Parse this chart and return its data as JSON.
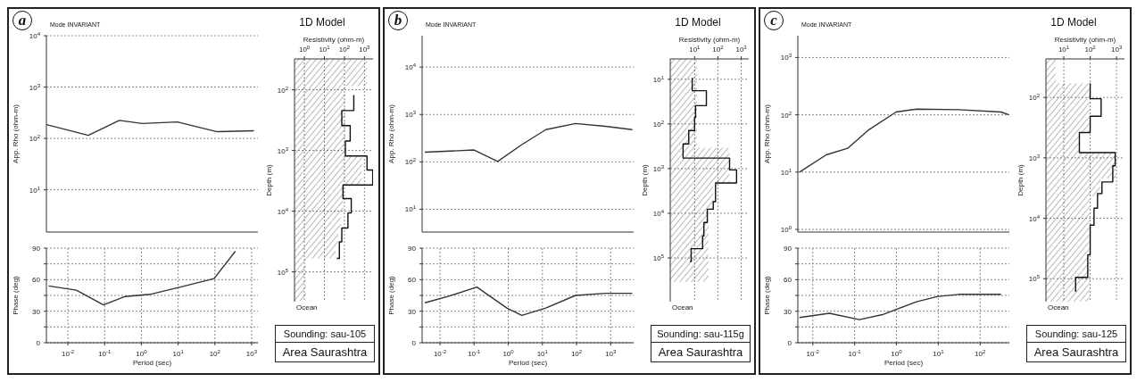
{
  "chart_data": [
    {
      "type": "line",
      "title": "Mode INVARIANT",
      "annotations": [
        "a"
      ],
      "ylabel": "App. Rho (ohm-m)",
      "color": "#333333",
      "log": "xy",
      "grid": true,
      "tick_labels": "y",
      "x": [
        0.0026,
        0.036,
        0.25,
        1.05,
        9.5,
        115,
        1150
      ],
      "values": [
        186,
        115,
        224,
        195,
        209,
        135,
        141
      ],
      "xlim": [
        0.0026,
        1480
      ],
      "xticks": [
        {
          "value": 0.01,
          "label": null
        },
        {
          "value": 0.1,
          "label": null
        },
        {
          "value": 1,
          "label": null
        },
        {
          "value": 10,
          "label": null
        },
        {
          "value": 100,
          "label": null
        },
        {
          "value": 1000,
          "label": null
        }
      ],
      "ylim": [
        1.5,
        10000
      ],
      "yticks": [
        {
          "value": 10,
          "label": "10$^{1}$"
        },
        {
          "value": 100,
          "label": "10$^{2}$"
        },
        {
          "value": 1000,
          "label": "10$^{3}$"
        },
        {
          "value": 10000,
          "label": "10$^{4}$"
        }
      ]
    },
    {
      "type": "line",
      "xlabel": "Period (sec)",
      "ylabel": "Phase (deg)",
      "color": "#333333",
      "log": "x",
      "grid": true,
      "x": [
        0.003,
        0.017,
        0.093,
        0.36,
        1.7,
        11.5,
        95,
        360
      ],
      "values": [
        54,
        50,
        36,
        44,
        46,
        53,
        61,
        87
      ],
      "xlim": [
        0.0026,
        1480
      ],
      "xticks": [
        {
          "value": 0.01,
          "label": "10$^{-2}$"
        },
        {
          "value": 0.1,
          "label": "10$^{-1}$"
        },
        {
          "value": 1,
          "label": "10$^{0}$"
        },
        {
          "value": 10,
          "label": "10$^{1}$"
        },
        {
          "value": 100,
          "label": "10$^{2}$"
        },
        {
          "value": 1000,
          "label": "10$^{3}$"
        }
      ],
      "ylim": [
        0,
        90
      ],
      "yticks": [
        0,
        {
          "value": 15,
          "label": null
        },
        30,
        {
          "value": 45,
          "label": null
        },
        60,
        {
          "value": 75,
          "label": null
        },
        90
      ]
    },
    {
      "type": "step",
      "orientation": "horizontal",
      "title": "1D Model",
      "xlabel": "Resistivity (ohm-m)",
      "ylabel": "Depth (m)",
      "annotations": [
        "Ocean"
      ],
      "log": "xy",
      "grid": true,
      "series": [
        {
          "type": "area",
          "color": "#333333",
          "x": [
            31,
            87,
            1230,
            3900,
            10700,
            21000,
            36000,
            60000,
            300000
          ],
          "values": [
            1350,
            112,
            740,
            85,
            65,
            49,
            37,
            1.2,
            1.2
          ]
        },
        {
          "type": "step",
          "color": "#111111",
          "x": [
            122,
            220,
            390,
            700,
            1230,
            2100,
            3700,
            6200,
            10700,
            19000,
            32000,
            60000
          ],
          "values": [
            295,
            74,
            195,
            112,
            1350,
            2600,
            85,
            220,
            150,
            74,
            56,
            42
          ]
        }
      ],
      "xlim": [
        0.32,
        2700
      ],
      "xticks": [
        {
          "value": 1,
          "label": "10$^{0}$"
        },
        {
          "value": 10,
          "label": "10$^{1}$"
        },
        {
          "value": 100,
          "label": "10$^{2}$"
        },
        {
          "value": 1000,
          "label": "10$^{3}$"
        }
      ],
      "ylim": [
        310000,
        31
      ],
      "yticks": [
        {
          "value": 100,
          "label": "10$^{2}$"
        },
        {
          "value": 1000,
          "label": "10$^{3}$"
        },
        {
          "value": 10000,
          "label": "10$^{4}$"
        },
        {
          "value": 100000,
          "label": "10$^{5}$"
        }
      ]
    },
    {
      "type": "other",
      "annotations": [
        "Sounding: sau-105",
        "Area Saurashtra"
      ]
    },
    {
      "type": "line",
      "title": "Mode INVARIANT",
      "annotations": [
        "b"
      ],
      "ylabel": "App. Rho (ohm-m)",
      "color": "#333333",
      "log": "xy",
      "grid": true,
      "tick_labels": "y",
      "x": [
        0.0036,
        0.1,
        0.49,
        2.45,
        12.6,
        93,
        690,
        4300
      ],
      "values": [
        160,
        178,
        102,
        229,
        479,
        645,
        562,
        479
      ],
      "xlim": [
        0.003,
        4700
      ],
      "xticks": [
        {
          "value": 0.01,
          "label": null
        },
        {
          "value": 0.1,
          "label": null
        },
        {
          "value": 1,
          "label": null
        },
        {
          "value": 10,
          "label": null
        },
        {
          "value": 100,
          "label": null
        },
        {
          "value": 1000,
          "label": null
        }
      ],
      "ylim": [
        3.3,
        46000
      ],
      "yticks": [
        {
          "value": 10,
          "label": "10$^{1}$"
        },
        {
          "value": 100,
          "label": "10$^{2}$"
        },
        {
          "value": 1000,
          "label": "10$^{3}$"
        },
        {
          "value": 10000,
          "label": "10$^{4}$"
        }
      ]
    },
    {
      "type": "line",
      "xlabel": "Period (sec)",
      "ylabel": "Phase (deg)",
      "color": "#333333",
      "log": "x",
      "grid": true,
      "x": [
        0.0036,
        0.017,
        0.12,
        0.91,
        2.5,
        12.6,
        93,
        690,
        4300
      ],
      "values": [
        38,
        44,
        53,
        33,
        26,
        33,
        45,
        47,
        47
      ],
      "xlim": [
        0.003,
        4700
      ],
      "xticks": [
        {
          "value": 0.01,
          "label": "10$^{-2}$"
        },
        {
          "value": 0.1,
          "label": "10$^{-1}$"
        },
        {
          "value": 1,
          "label": "10$^{0}$"
        },
        {
          "value": 10,
          "label": "10$^{1}$"
        },
        {
          "value": 100,
          "label": "10$^{2}$"
        },
        {
          "value": 1000,
          "label": "10$^{3}$"
        }
      ],
      "ylim": [
        0,
        90
      ],
      "yticks": [
        0,
        {
          "value": 15,
          "label": null
        },
        30,
        {
          "value": 45,
          "label": null
        },
        60,
        {
          "value": 75,
          "label": null
        },
        90
      ]
    },
    {
      "type": "step",
      "orientation": "horizontal",
      "title": "1D Model",
      "xlabel": "Resistivity (ohm-m)",
      "ylabel": "Depth (m)",
      "annotations": [
        "Ocean"
      ],
      "log": "xy",
      "grid": true,
      "series": [
        {
          "type": "area",
          "color": "#333333",
          "x": [
            3.5,
            340,
            2100,
            8100,
            340000
          ],
          "values": [
            12.6,
            316,
            63,
            40,
            40
          ]
        },
        {
          "type": "step",
          "color": "#111111",
          "x": [
            9.3,
            18,
            39,
            71,
            140,
            280,
            580,
            1070,
            2100,
            5500,
            8100,
            16000,
            32000,
            62000,
            120000
          ],
          "values": [
            7.9,
            32,
            11,
            10,
            5.6,
            3.2,
            316,
            630,
            79,
            63,
            35,
            25,
            22,
            7.1,
            6.3
          ]
        }
      ],
      "xlim": [
        0.9,
        2100
      ],
      "xticks": [
        {
          "value": 10,
          "label": "10$^{1}$"
        },
        {
          "value": 100,
          "label": "10$^{2}$"
        },
        {
          "value": 1000,
          "label": "10$^{3}$"
        }
      ],
      "ylim": [
        950000,
        3.5
      ],
      "yticks": [
        {
          "value": 10,
          "label": "10$^{1}$"
        },
        {
          "value": 100,
          "label": "10$^{2}$"
        },
        {
          "value": 1000,
          "label": "10$^{3}$"
        },
        {
          "value": 10000,
          "label": "10$^{4}$"
        },
        {
          "value": 100000,
          "label": "10$^{5}$"
        }
      ]
    },
    {
      "type": "other",
      "annotations": [
        "Sounding: sau-115g",
        "Area Saurashtra"
      ]
    },
    {
      "type": "line",
      "title": "Mode INVARIANT",
      "annotations": [
        "c"
      ],
      "ylabel": "App. Rho (ohm-m)",
      "color": "#333333",
      "log": "xy",
      "grid": true,
      "tick_labels": "y",
      "x": [
        0.0048,
        0.021,
        0.068,
        0.22,
        0.98,
        3.1,
        31,
        316,
        490
      ],
      "values": [
        10,
        20,
        26,
        55,
        112,
        126,
        123,
        112,
        100
      ],
      "xlim": [
        0.0044,
        500
      ],
      "xticks": [
        {
          "value": 0.01,
          "label": null
        },
        {
          "value": 0.1,
          "label": null
        },
        {
          "value": 1,
          "label": null
        },
        {
          "value": 10,
          "label": null
        },
        {
          "value": 100,
          "label": null
        }
      ],
      "ylim": [
        0.9,
        2400
      ],
      "yticks": [
        {
          "value": 1,
          "label": "10$^{0}$"
        },
        {
          "value": 10,
          "label": "10$^{1}$"
        },
        {
          "value": 100,
          "label": "10$^{2}$"
        },
        {
          "value": 1000,
          "label": "10$^{3}$"
        }
      ]
    },
    {
      "type": "line",
      "xlabel": "Period (sec)",
      "ylabel": "Phase (deg)",
      "color": "#333333",
      "log": "x",
      "grid": true,
      "x": [
        0.0048,
        0.025,
        0.13,
        0.49,
        3,
        9.8,
        31,
        316
      ],
      "values": [
        24,
        28,
        22,
        27,
        39,
        44,
        46,
        46
      ],
      "xlim": [
        0.0044,
        500
      ],
      "xticks": [
        {
          "value": 0.01,
          "label": "10$^{-2}$"
        },
        {
          "value": 0.1,
          "label": "10$^{-1}$"
        },
        {
          "value": 1,
          "label": "10$^{0}$"
        },
        {
          "value": 10,
          "label": "10$^{1}$"
        },
        {
          "value": 100,
          "label": "10$^{2}$"
        }
      ],
      "ylim": [
        0,
        90
      ],
      "yticks": [
        0,
        {
          "value": 15,
          "label": null
        },
        30,
        {
          "value": 45,
          "label": null
        },
        60,
        {
          "value": 75,
          "label": null
        },
        90
      ]
    },
    {
      "type": "step",
      "orientation": "horizontal",
      "title": "1D Model",
      "xlabel": "Resistivity (ohm-m)",
      "ylabel": "Depth (m)",
      "annotations": [
        "Ocean"
      ],
      "log": "xy",
      "grid": true,
      "series": [
        {
          "type": "area",
          "color": "#333333",
          "x": [
            23,
            58,
            380,
            820,
            2200,
            4300,
            240000
          ],
          "values": [
            5,
            93,
            37,
            950,
            245,
            93,
            93
          ]
        },
        {
          "type": "step",
          "color": "#111111",
          "x": [
            58,
            105,
            205,
            380,
            820,
            1350,
            2500,
            3900,
            6800,
            13000,
            40000,
            95000,
            165000
          ],
          "values": [
            100,
            260,
            100,
            39,
            890,
            720,
            280,
            190,
            140,
            100,
            81,
            28,
            28
          ]
        }
      ],
      "xlim": [
        2.1,
        2000
      ],
      "xticks": [
        {
          "value": 10,
          "label": "10$^{1}$"
        },
        {
          "value": 100,
          "label": "10$^{2}$"
        },
        {
          "value": 1000,
          "label": "10$^{3}$"
        }
      ],
      "ylim": [
        240000,
        23
      ],
      "yticks": [
        {
          "value": 100,
          "label": "10$^{2}$"
        },
        {
          "value": 1000,
          "label": "10$^{3}$"
        },
        {
          "value": 10000,
          "label": "10$^{4}$"
        },
        {
          "value": 100000,
          "label": "10$^{5}$"
        }
      ]
    },
    {
      "type": "other",
      "annotations": [
        "Sounding: sau-125",
        "Area Saurashtra"
      ]
    }
  ]
}
